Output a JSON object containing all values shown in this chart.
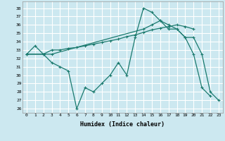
{
  "xlabel": "Humidex (Indice chaleur)",
  "background_color": "#cce8f0",
  "grid_color": "#ffffff",
  "line_color": "#1a7a6e",
  "x_ticks": [
    0,
    1,
    2,
    3,
    4,
    5,
    6,
    7,
    8,
    9,
    10,
    11,
    12,
    13,
    14,
    15,
    16,
    17,
    18,
    19,
    20,
    21,
    22,
    23
  ],
  "y_ticks": [
    26,
    27,
    28,
    29,
    30,
    31,
    32,
    33,
    34,
    35,
    36,
    37,
    38
  ],
  "ylim": [
    25.5,
    38.8
  ],
  "xlim": [
    -0.5,
    23.5
  ],
  "line1_x": [
    0,
    1,
    2,
    3,
    4,
    5,
    6,
    7,
    8,
    9,
    10,
    11,
    12,
    13,
    14,
    15,
    16,
    17,
    18,
    19,
    20,
    21,
    22
  ],
  "line1_y": [
    32.5,
    33.5,
    32.5,
    31.5,
    31.0,
    30.5,
    26.0,
    28.5,
    28.0,
    29.0,
    30.0,
    31.5,
    30.0,
    34.5,
    38.0,
    37.5,
    36.5,
    35.5,
    35.5,
    34.5,
    32.5,
    28.5,
    27.5
  ],
  "line2_x": [
    0,
    2,
    3,
    14,
    15,
    16,
    17,
    18,
    19,
    20,
    21,
    22,
    23
  ],
  "line2_y": [
    32.5,
    32.5,
    32.5,
    35.5,
    36.0,
    36.5,
    36.0,
    35.5,
    34.5,
    34.5,
    32.5,
    28.0,
    27.0
  ],
  "line3_x": [
    0,
    2,
    3,
    4,
    5,
    6,
    7,
    8,
    9,
    10,
    11,
    12,
    13,
    14,
    15,
    16,
    17,
    18,
    19,
    20
  ],
  "line3_y": [
    32.5,
    32.5,
    33.0,
    33.0,
    33.2,
    33.3,
    33.5,
    33.7,
    33.9,
    34.1,
    34.3,
    34.6,
    34.8,
    35.1,
    35.4,
    35.6,
    35.8,
    36.0,
    35.8,
    35.5
  ]
}
